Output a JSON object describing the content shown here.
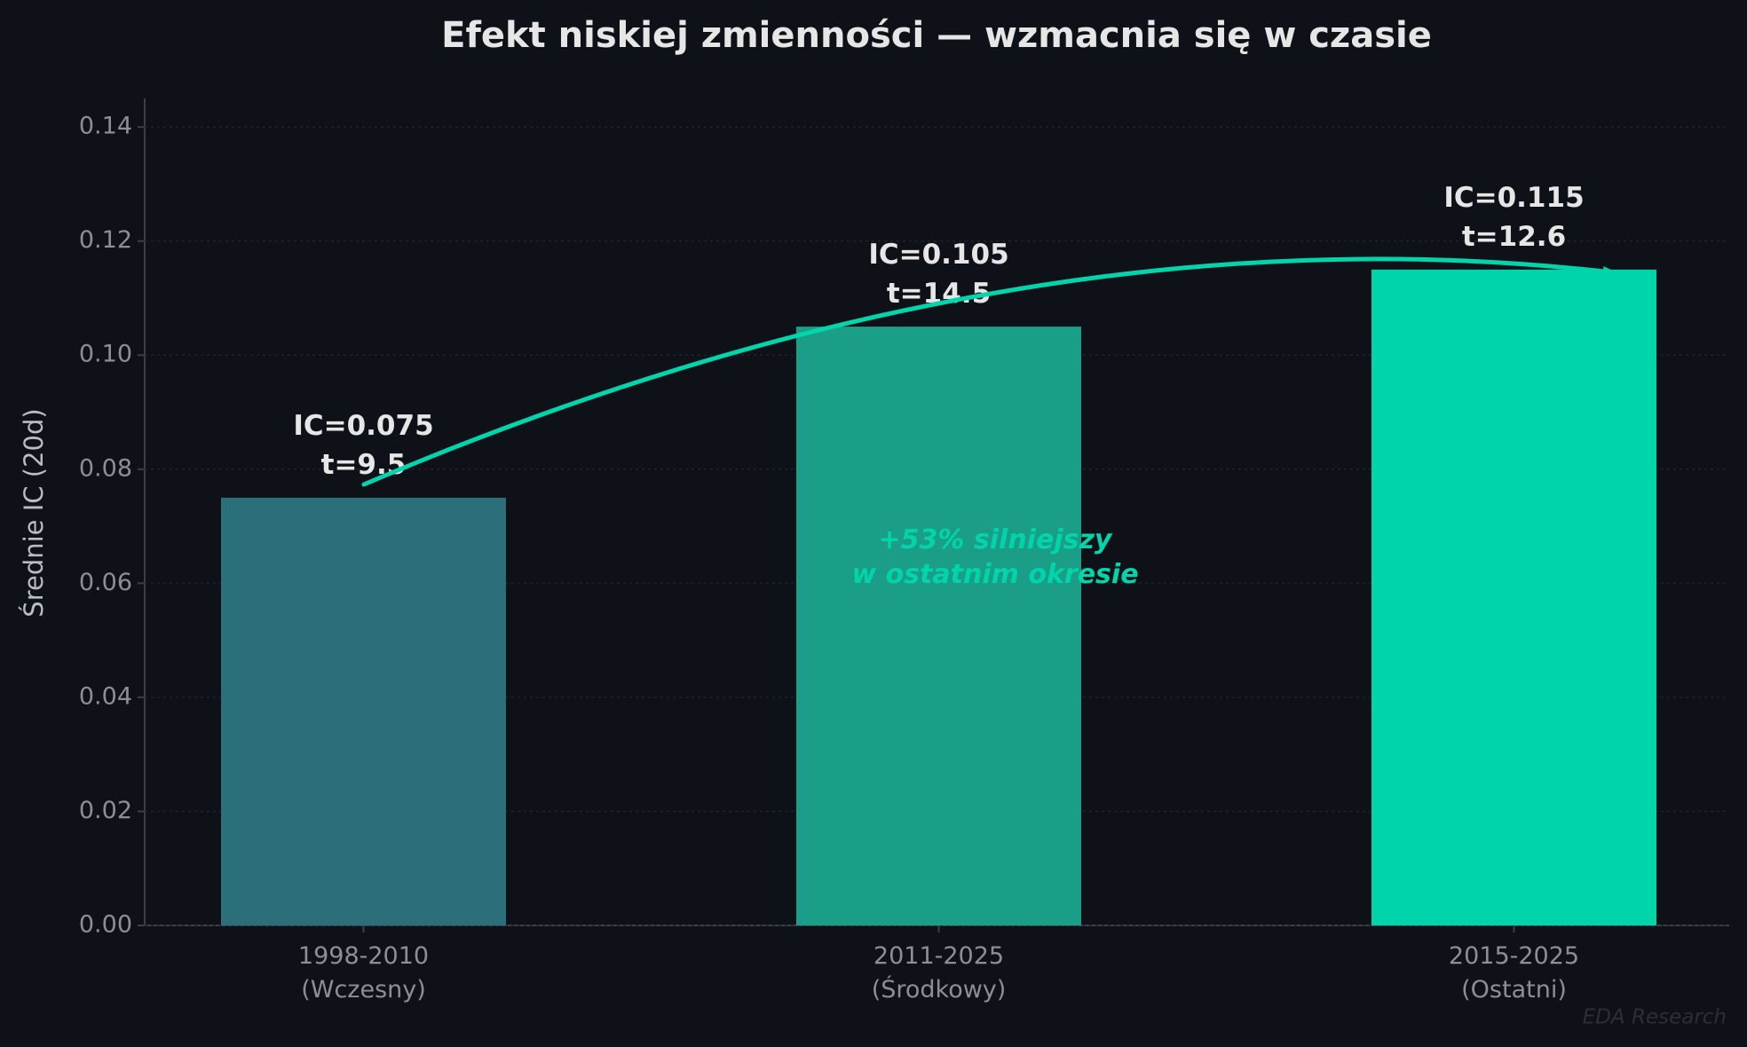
{
  "chart_data": {
    "type": "bar",
    "title": "Efekt niskiej zmienności — wzmacnia się w czasie",
    "y_label": "Średnie IC (20d)",
    "categories": [
      "1998-2010\n(Wczesny)",
      "2011-2025\n(Środkowy)",
      "2015-2025\n(Ostatni)"
    ],
    "values": [
      0.075,
      0.105,
      0.115
    ],
    "value_labels": [
      "IC=0.075\nt=9.5",
      "IC=0.105\nt=14.5",
      "IC=0.115\nt=12.6"
    ],
    "colors": [
      "#2a6f7a",
      "#1b9e88",
      "#00d4aa"
    ],
    "ylim": [
      0,
      0.145
    ],
    "yticks": [
      {
        "value": 0,
        "label": "0.00"
      },
      {
        "value": 0.02,
        "label": "0.02"
      },
      {
        "value": 0.04,
        "label": "0.04"
      },
      {
        "value": 0.06,
        "label": "0.06"
      },
      {
        "value": 0.08,
        "label": "0.08"
      },
      {
        "value": 0.1,
        "label": "0.10"
      },
      {
        "value": 0.12,
        "label": "0.12"
      },
      {
        "value": 0.14,
        "label": "0.14"
      }
    ],
    "grid": true,
    "annotation": "+53% silniejszy\nw ostatnim okresie",
    "watermark": "EDA Research"
  }
}
